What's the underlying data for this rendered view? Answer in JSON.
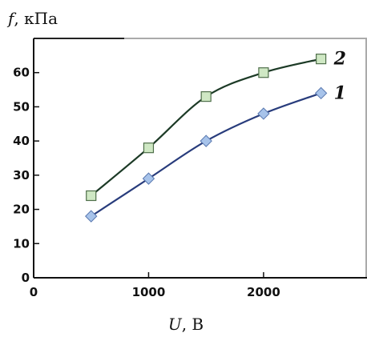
{
  "chart_data": {
    "type": "line",
    "ylabel": {
      "symbol": "f",
      "unit": ", кПа"
    },
    "xlabel": {
      "symbol": "U",
      "unit": ", В"
    },
    "xlim": [
      0,
      2900
    ],
    "ylim": [
      0,
      70
    ],
    "x_ticks": [
      0,
      1000,
      2000
    ],
    "y_ticks": [
      0,
      10,
      20,
      30,
      40,
      50,
      60
    ],
    "grid": false,
    "series": [
      {
        "name": "1",
        "marker": "diamond",
        "line_color": "#283c7c",
        "marker_fill": "#a7c3ea",
        "marker_stroke": "#5a79b0",
        "x": [
          500,
          1000,
          1500,
          2000,
          2500
        ],
        "y": [
          18,
          29,
          40,
          48,
          54
        ]
      },
      {
        "name": "2",
        "marker": "square",
        "line_color": "#1c3a26",
        "marker_fill": "#cfe8c4",
        "marker_stroke": "#4f6f4a",
        "x": [
          500,
          1000,
          1500,
          2000,
          2500
        ],
        "y": [
          24,
          38,
          53,
          60,
          64
        ]
      }
    ]
  }
}
